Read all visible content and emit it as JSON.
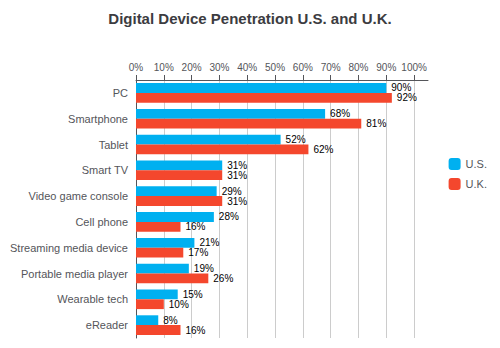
{
  "chart_data": {
    "type": "bar",
    "orientation": "horizontal",
    "title": "Digital Device Penetration U.S. and U.K.",
    "categories": [
      "PC",
      "Smartphone",
      "Tablet",
      "Smart TV",
      "Video game console",
      "Cell phone",
      "Streaming media device",
      "Portable media player",
      "Wearable tech",
      "eReader"
    ],
    "series": [
      {
        "name": "U.S.",
        "color": "#00B0F0",
        "values": [
          90,
          68,
          52,
          31,
          29,
          28,
          21,
          19,
          15,
          8
        ],
        "value_labels": [
          "90%",
          "68%",
          "52%",
          "31%",
          "29%",
          "28%",
          "21%",
          "19%",
          "15%",
          "8%"
        ]
      },
      {
        "name": "U.K.",
        "color": "#F4472D",
        "values": [
          92,
          81,
          62,
          31,
          31,
          16,
          17,
          26,
          10,
          16
        ],
        "value_labels": [
          "92%",
          "81%",
          "62%",
          "31%",
          "31%",
          "16%",
          "17%",
          "26%",
          "10%",
          "16%"
        ]
      }
    ],
    "xlim": [
      0,
      105
    ],
    "xticks": [
      {
        "value": 0,
        "label": "0%"
      },
      {
        "value": 10,
        "label": "10%"
      },
      {
        "value": 20,
        "label": "20%"
      },
      {
        "value": 30,
        "label": "30%"
      },
      {
        "value": 40,
        "label": "40%"
      },
      {
        "value": 50,
        "label": "50%"
      },
      {
        "value": 60,
        "label": "60%"
      },
      {
        "value": 70,
        "label": "70%"
      },
      {
        "value": 80,
        "label": "80%"
      },
      {
        "value": 90,
        "label": "90%"
      },
      {
        "value": 100,
        "label": "100%"
      }
    ],
    "grid": true,
    "legend": "right",
    "data_labels": true
  }
}
